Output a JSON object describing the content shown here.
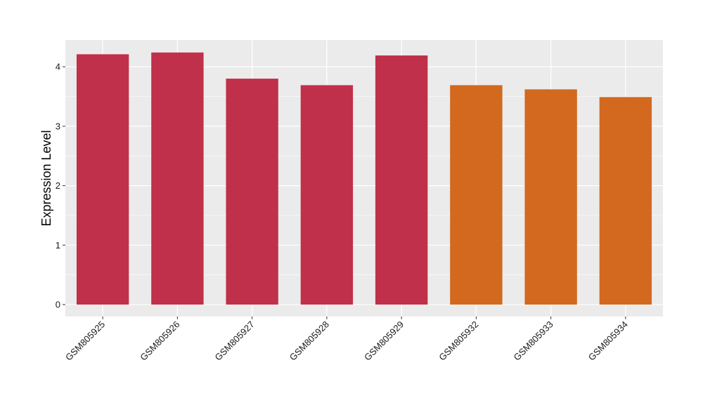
{
  "chart_data": {
    "type": "bar",
    "categories": [
      "GSM805925",
      "GSM805926",
      "GSM805927",
      "GSM805928",
      "GSM805929",
      "GSM805932",
      "GSM805933",
      "GSM805934"
    ],
    "values": [
      4.21,
      4.24,
      3.8,
      3.69,
      4.19,
      3.69,
      3.62,
      3.49
    ],
    "bar_colors": [
      "#c1304a",
      "#c1304a",
      "#c1304a",
      "#c1304a",
      "#c1304a",
      "#d2691f",
      "#d2691f",
      "#d2691f"
    ],
    "title": "",
    "xlabel": "",
    "ylabel": "Expression Level",
    "ylim": [
      -0.2,
      4.45
    ],
    "yticks": [
      0,
      1,
      2,
      3,
      4
    ],
    "ytick_labels": [
      "0",
      "1",
      "2",
      "3",
      "4"
    ],
    "grid": true,
    "legend": "none",
    "panel_background": "#ebebeb",
    "grid_color": "#ffffff"
  }
}
